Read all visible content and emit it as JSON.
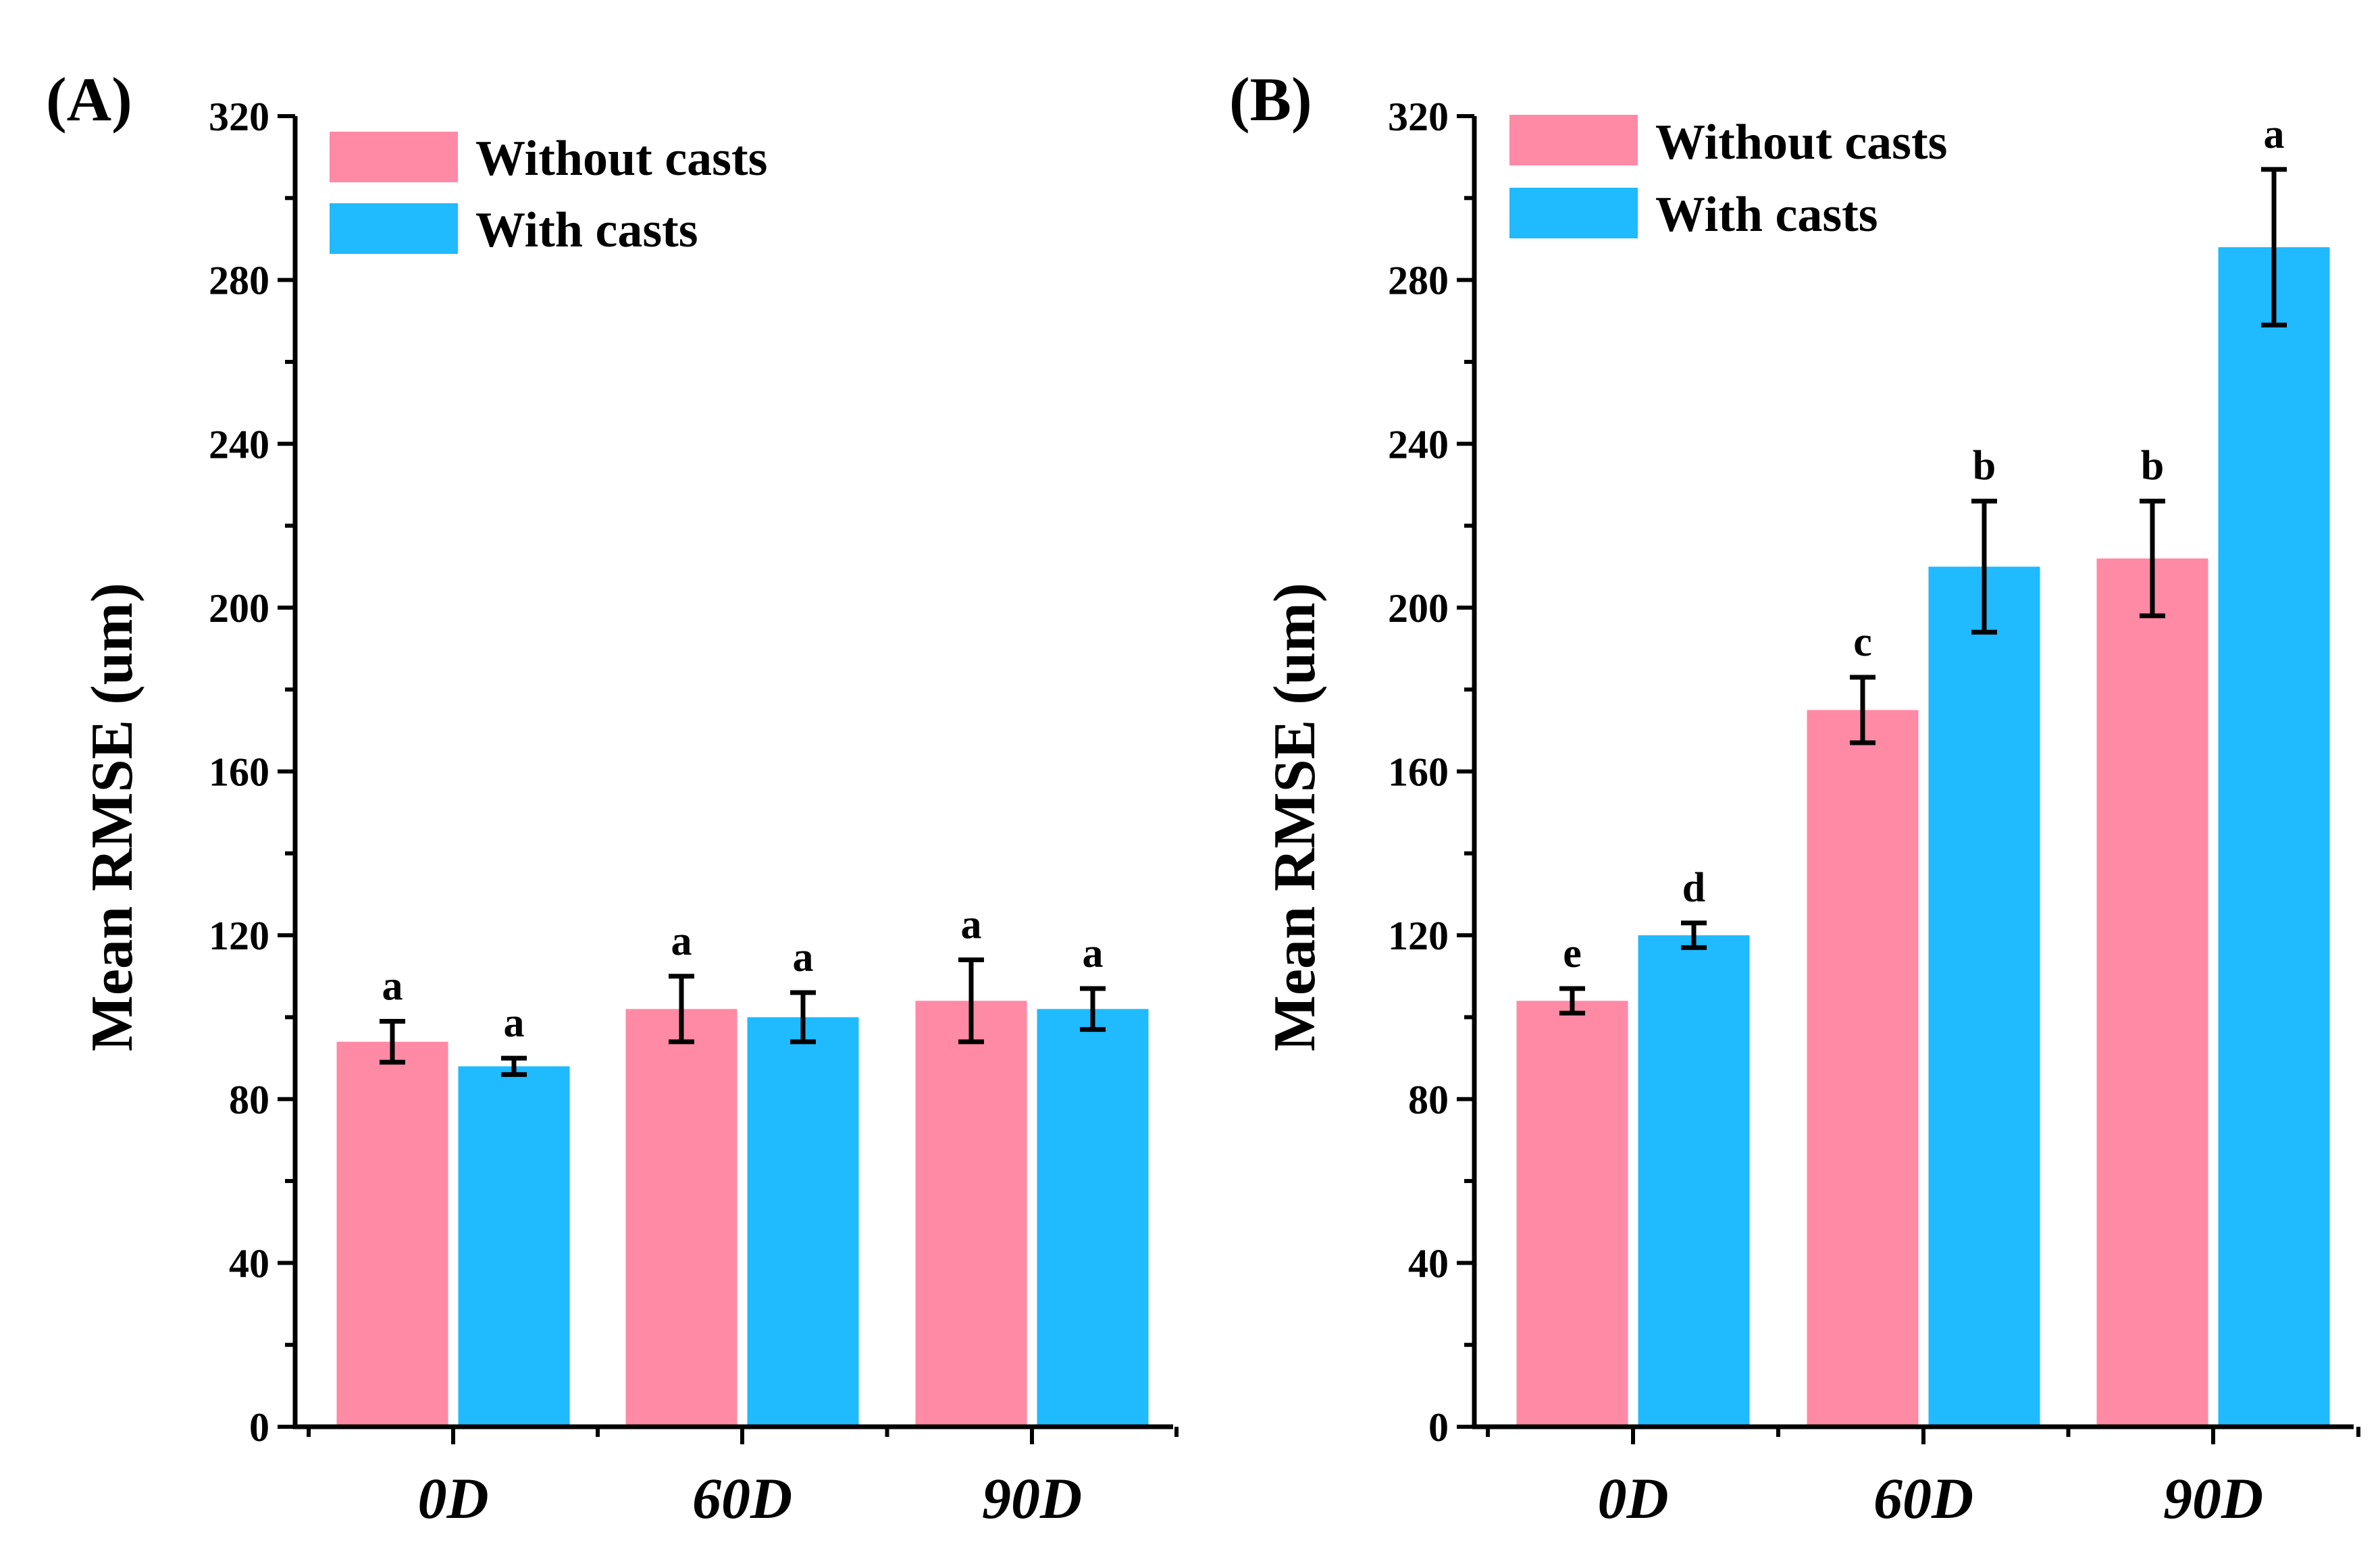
{
  "colors": {
    "without_casts": "#ff8aa5",
    "with_casts": "#1fbaff",
    "axis": "#000000"
  },
  "chart_data": [
    {
      "type": "bar",
      "panel_label": "(A)",
      "title": "",
      "xlabel": "",
      "ylabel": "Mean RMSE (um)",
      "ylim": [
        0,
        320
      ],
      "yticks": [
        0,
        40,
        80,
        120,
        160,
        200,
        240,
        280,
        320
      ],
      "categories": [
        "0D",
        "60D",
        "90D"
      ],
      "legend": [
        "Without casts",
        "With casts"
      ],
      "series": [
        {
          "name": "Without casts",
          "values": [
            94,
            102,
            104
          ],
          "errors": [
            5,
            8,
            10
          ],
          "labels": [
            "a",
            "a",
            "a"
          ]
        },
        {
          "name": "With casts",
          "values": [
            88,
            100,
            102
          ],
          "errors": [
            2,
            6,
            5
          ],
          "labels": [
            "a",
            "a",
            "a"
          ]
        }
      ]
    },
    {
      "type": "bar",
      "panel_label": "(B)",
      "title": "",
      "xlabel": "",
      "ylabel": "Mean RMSE (um)",
      "ylim": [
        0,
        320
      ],
      "yticks": [
        0,
        40,
        80,
        120,
        160,
        200,
        240,
        280,
        320
      ],
      "categories": [
        "0D",
        "60D",
        "90D"
      ],
      "legend": [
        "Without casts",
        "With casts"
      ],
      "series": [
        {
          "name": "Without casts",
          "values": [
            104,
            175,
            212
          ],
          "errors": [
            3,
            8,
            14
          ],
          "labels": [
            "e",
            "c",
            "b"
          ]
        },
        {
          "name": "With casts",
          "values": [
            120,
            210,
            288
          ],
          "errors": [
            3,
            16,
            19
          ],
          "labels": [
            "d",
            "b",
            "a"
          ]
        }
      ]
    }
  ]
}
